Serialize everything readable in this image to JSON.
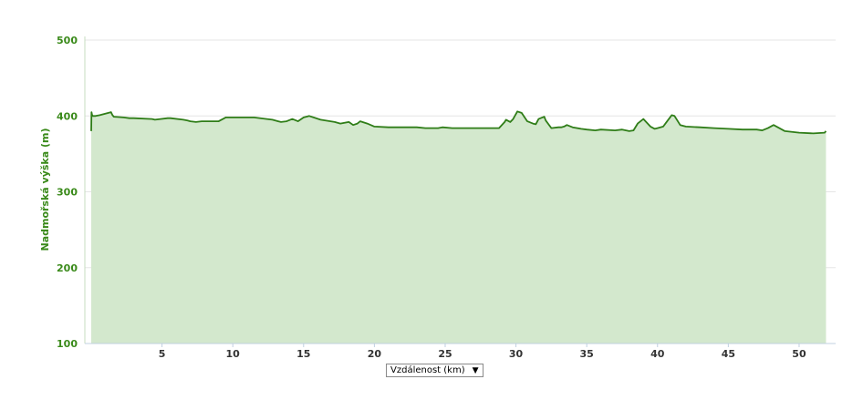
{
  "chart_data": {
    "type": "area",
    "ylabel": "Nadmořská výška (m)",
    "ylim": [
      100,
      500
    ],
    "xlim": [
      0,
      52
    ],
    "yticks": [
      100,
      200,
      300,
      400,
      500
    ],
    "xticks": [
      5,
      10,
      15,
      20,
      25,
      30,
      35,
      40,
      45,
      50
    ],
    "grid": true,
    "colors": {
      "line": "#2f7d18",
      "fill": "#d3e8cd",
      "grid": "#e6e6e6"
    },
    "series": [
      {
        "x": [
          0.0,
          0.02,
          0.05,
          0.1,
          0.3,
          0.6,
          1.0,
          1.4,
          1.5,
          1.6,
          2.3,
          2.7,
          3.0,
          4.3,
          4.5,
          5.4,
          5.6,
          6.5,
          6.8,
          7.0,
          7.4,
          7.8,
          9.0,
          9.5,
          11.5,
          12.4,
          12.8,
          13.2,
          13.4,
          13.8,
          14.2,
          14.6,
          15.0,
          15.4,
          16.2,
          17.2,
          17.6,
          18.2,
          18.5,
          18.8,
          19.0,
          19.5,
          20.0,
          21.0,
          23.0,
          23.6,
          24.0,
          24.5,
          24.8,
          25.5,
          26.0,
          28.8,
          29.2,
          29.3,
          29.6,
          29.8,
          30.1,
          30.4,
          30.8,
          31.2,
          31.4,
          31.6,
          32.0,
          32.1,
          32.5,
          33.0,
          33.2,
          33.4,
          33.6,
          34.0,
          34.6,
          35.0,
          35.6,
          36.0,
          37.0,
          37.5,
          38.0,
          38.3,
          38.6,
          39.0,
          39.5,
          39.8,
          40.0,
          40.4,
          40.6,
          41.0,
          41.2,
          41.6,
          42.0,
          43.0,
          44.0,
          45.0,
          46.0,
          47.0,
          47.4,
          47.8,
          48.2,
          49.0,
          50.0,
          51.0,
          51.8,
          51.9
        ],
        "y": [
          380,
          405,
          402,
          400,
          400,
          401,
          403,
          405,
          401,
          399,
          398,
          397,
          397,
          396,
          395,
          397,
          397,
          395,
          394,
          393,
          392,
          393,
          393,
          398,
          398,
          396,
          395,
          393,
          392,
          393,
          396,
          393,
          398,
          400,
          395,
          392,
          390,
          392,
          388,
          390,
          393,
          390,
          386,
          385,
          385,
          384,
          384,
          384,
          385,
          384,
          384,
          384,
          392,
          395,
          392,
          396,
          406,
          404,
          393,
          390,
          389,
          396,
          399,
          394,
          384,
          385,
          385,
          386,
          388,
          385,
          383,
          382,
          381,
          382,
          381,
          382,
          380,
          381,
          390,
          396,
          386,
          383,
          384,
          386,
          391,
          401,
          400,
          388,
          386,
          385,
          384,
          383,
          382,
          382,
          381,
          384,
          388,
          380,
          378,
          377,
          378,
          380
        ]
      }
    ]
  }
}
